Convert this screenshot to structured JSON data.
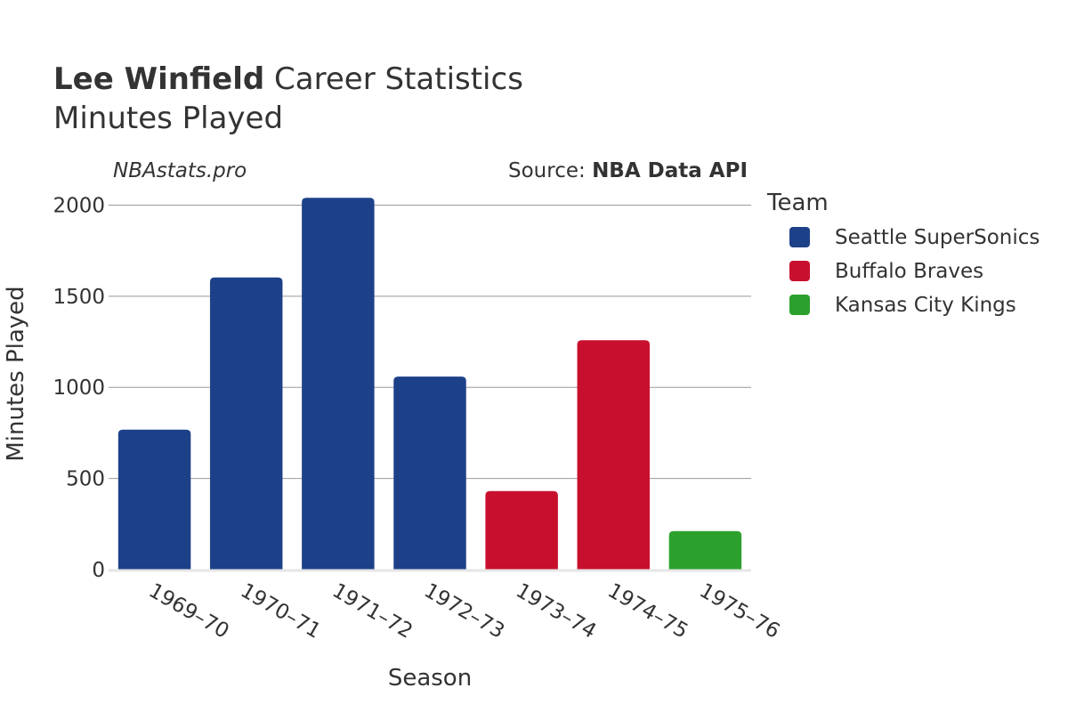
{
  "title": {
    "player": "Lee Winfield",
    "rest": " Career Statistics",
    "subtitle": "Minutes Played"
  },
  "watermark": "NBAstats.pro",
  "source": {
    "prefix": "Source: ",
    "name": "NBA Data API"
  },
  "chart_data": {
    "type": "bar",
    "title": "Lee Winfield Career Statistics",
    "subtitle": "Minutes Played",
    "xlabel": "Season",
    "ylabel": "Minutes Played",
    "ylim": [
      0,
      2100
    ],
    "yticks": [
      0,
      500,
      1000,
      1500,
      2000
    ],
    "ytick_labels": [
      "0",
      "500",
      "1000",
      "1500",
      "2000"
    ],
    "grid": true,
    "legend_title": "Team",
    "legend_position": "right",
    "categories": [
      "1969–70",
      "1970–71",
      "1971–72",
      "1972–73",
      "1973–74",
      "1974–75",
      "1975–76"
    ],
    "series": [
      {
        "name": "Seattle SuperSonics",
        "color": "#1d4189",
        "values": [
          768,
          1603,
          2040,
          1059,
          null,
          null,
          null
        ]
      },
      {
        "name": "Buffalo Braves",
        "color": "#c8102e",
        "values": [
          null,
          null,
          null,
          null,
          431,
          1259,
          null
        ]
      },
      {
        "name": "Kansas City Kings",
        "color": "#2ca02c",
        "values": [
          null,
          null,
          null,
          null,
          null,
          null,
          211
        ]
      }
    ]
  }
}
